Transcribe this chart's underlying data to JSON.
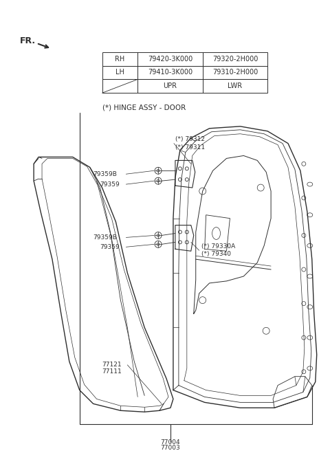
{
  "background_color": "#ffffff",
  "text_color": "#2d2d2d",
  "line_color": "#2d2d2d",
  "label_color": "#2d2d2d",
  "hinge_title": "(*) HINGE ASSY - DOOR",
  "table_headers": [
    "",
    "UPR",
    "LWR"
  ],
  "table_rows": [
    [
      "LH",
      "79410-3K000",
      "79310-2H000"
    ],
    [
      "RH",
      "79420-3K000",
      "79320-2H000"
    ]
  ],
  "fr_label": "FR."
}
